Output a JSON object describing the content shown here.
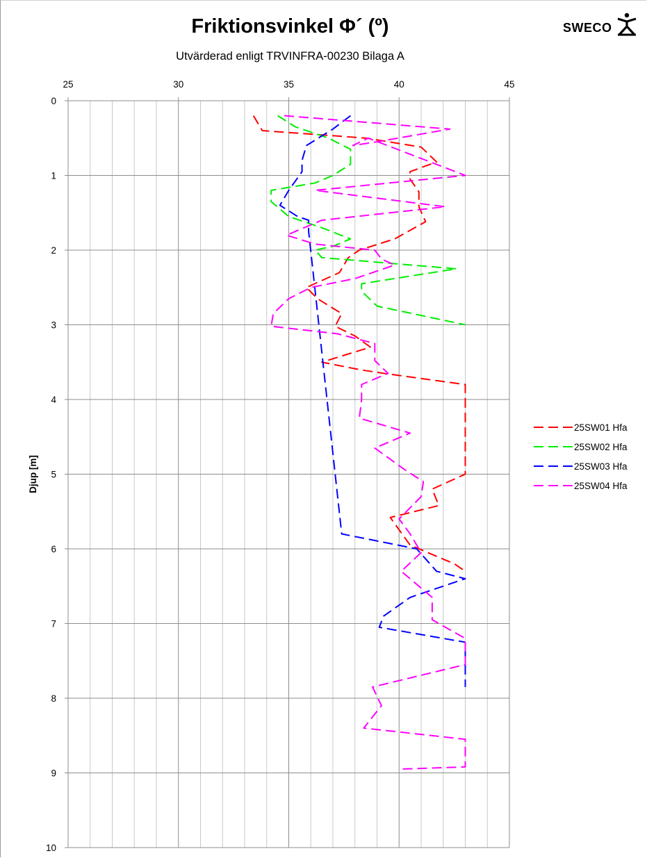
{
  "header": {
    "title": "Friktionsvinkel Φ´ (º)",
    "subtitle": "Utvärderad enligt TRVINFRA-00230 Bilaga A"
  },
  "logo": {
    "text": "SWECO",
    "icon": "sweco-figure-icon"
  },
  "chart_data": {
    "type": "line",
    "title": "Friktionsvinkel Φ´ (º)",
    "subtitle": "Utvärderad enligt TRVINFRA-00230 Bilaga A",
    "xlabel": "",
    "ylabel": "Djup [m]",
    "x_axis_position": "top",
    "y_axis_inverted": true,
    "xlim": [
      25,
      45
    ],
    "ylim": [
      0,
      10
    ],
    "x_ticks": [
      25,
      30,
      35,
      40,
      45
    ],
    "y_ticks": [
      0,
      1,
      2,
      3,
      4,
      5,
      6,
      7,
      8,
      9,
      10
    ],
    "x_minor_step": 1,
    "grid": true,
    "legend_position": "right",
    "series": [
      {
        "name": "25SW01 Hfa",
        "color": "#ff0000",
        "points": [
          [
            33.4,
            0.2
          ],
          [
            33.8,
            0.4
          ],
          [
            38.5,
            0.5
          ],
          [
            41.0,
            0.62
          ],
          [
            41.7,
            0.82
          ],
          [
            40.5,
            0.95
          ],
          [
            40.5,
            1.05
          ],
          [
            40.9,
            1.22
          ],
          [
            40.9,
            1.42
          ],
          [
            41.2,
            1.62
          ],
          [
            39.8,
            1.85
          ],
          [
            38.2,
            2.0
          ],
          [
            37.7,
            2.1
          ],
          [
            37.5,
            2.2
          ],
          [
            37.3,
            2.3
          ],
          [
            35.8,
            2.5
          ],
          [
            36.3,
            2.65
          ],
          [
            37.4,
            2.85
          ],
          [
            37.1,
            3.02
          ],
          [
            38.0,
            3.15
          ],
          [
            38.7,
            3.3
          ],
          [
            36.5,
            3.5
          ],
          [
            38.2,
            3.6
          ],
          [
            39.3,
            3.65
          ],
          [
            43.0,
            3.8
          ],
          [
            43.0,
            5.0
          ],
          [
            41.5,
            5.2
          ],
          [
            41.8,
            5.42
          ],
          [
            39.6,
            5.58
          ],
          [
            40.5,
            5.95
          ],
          [
            42.5,
            6.2
          ],
          [
            43.0,
            6.3
          ]
        ]
      },
      {
        "name": "25SW02 Hfa",
        "color": "#00ee00",
        "points": [
          [
            34.5,
            0.2
          ],
          [
            35.3,
            0.35
          ],
          [
            36.8,
            0.5
          ],
          [
            37.8,
            0.65
          ],
          [
            37.8,
            0.85
          ],
          [
            37.0,
            1.0
          ],
          [
            36.2,
            1.1
          ],
          [
            34.2,
            1.2
          ],
          [
            34.2,
            1.35
          ],
          [
            35.0,
            1.55
          ],
          [
            36.5,
            1.7
          ],
          [
            37.8,
            1.85
          ],
          [
            37.0,
            1.95
          ],
          [
            36.2,
            2.0
          ],
          [
            36.5,
            2.1
          ],
          [
            42.6,
            2.25
          ],
          [
            38.3,
            2.45
          ],
          [
            38.3,
            2.55
          ],
          [
            39.0,
            2.75
          ],
          [
            43.0,
            3.0
          ]
        ]
      },
      {
        "name": "25SW03 Hfa",
        "color": "#0000ff",
        "points": [
          [
            37.8,
            0.2
          ],
          [
            37.0,
            0.38
          ],
          [
            35.8,
            0.6
          ],
          [
            35.6,
            0.8
          ],
          [
            35.6,
            0.95
          ],
          [
            35.0,
            1.2
          ],
          [
            34.6,
            1.4
          ],
          [
            35.4,
            1.55
          ],
          [
            35.9,
            1.6
          ],
          [
            35.9,
            1.75
          ],
          [
            37.4,
            5.8
          ],
          [
            40.8,
            6.0
          ],
          [
            41.7,
            6.3
          ],
          [
            43.0,
            6.4
          ],
          [
            40.5,
            6.65
          ],
          [
            39.3,
            6.9
          ],
          [
            39.1,
            7.05
          ],
          [
            43.0,
            7.25
          ],
          [
            43.0,
            7.85
          ]
        ]
      },
      {
        "name": "25SW04 Hfa",
        "color": "#ff00ff",
        "points": [
          [
            34.8,
            0.2
          ],
          [
            42.3,
            0.38
          ],
          [
            39.0,
            0.55
          ],
          [
            37.9,
            0.6
          ],
          [
            38.6,
            0.5
          ],
          [
            43.0,
            1.0
          ],
          [
            36.2,
            1.2
          ],
          [
            42.1,
            1.42
          ],
          [
            36.5,
            1.6
          ],
          [
            34.9,
            1.8
          ],
          [
            36.2,
            1.92
          ],
          [
            38.9,
            2.0
          ],
          [
            39.2,
            2.12
          ],
          [
            39.8,
            2.2
          ],
          [
            38.0,
            2.38
          ],
          [
            36.0,
            2.5
          ],
          [
            35.0,
            2.65
          ],
          [
            34.3,
            2.85
          ],
          [
            34.2,
            3.02
          ],
          [
            37.2,
            3.12
          ],
          [
            38.9,
            3.25
          ],
          [
            38.9,
            3.48
          ],
          [
            39.5,
            3.65
          ],
          [
            38.3,
            3.8
          ],
          [
            38.3,
            4.0
          ],
          [
            38.2,
            4.25
          ],
          [
            40.5,
            4.45
          ],
          [
            38.9,
            4.65
          ],
          [
            40.3,
            4.95
          ],
          [
            41.1,
            5.1
          ],
          [
            41.0,
            5.3
          ],
          [
            40.0,
            5.6
          ],
          [
            40.5,
            5.8
          ],
          [
            41.0,
            6.05
          ],
          [
            40.1,
            6.3
          ],
          [
            41.5,
            6.65
          ],
          [
            41.5,
            6.95
          ],
          [
            43.0,
            7.2
          ],
          [
            43.0,
            7.55
          ],
          [
            38.8,
            7.85
          ],
          [
            39.2,
            8.1
          ],
          [
            38.4,
            8.4
          ],
          [
            43.0,
            8.55
          ],
          [
            43.0,
            8.92
          ],
          [
            40.0,
            8.95
          ]
        ]
      }
    ]
  }
}
